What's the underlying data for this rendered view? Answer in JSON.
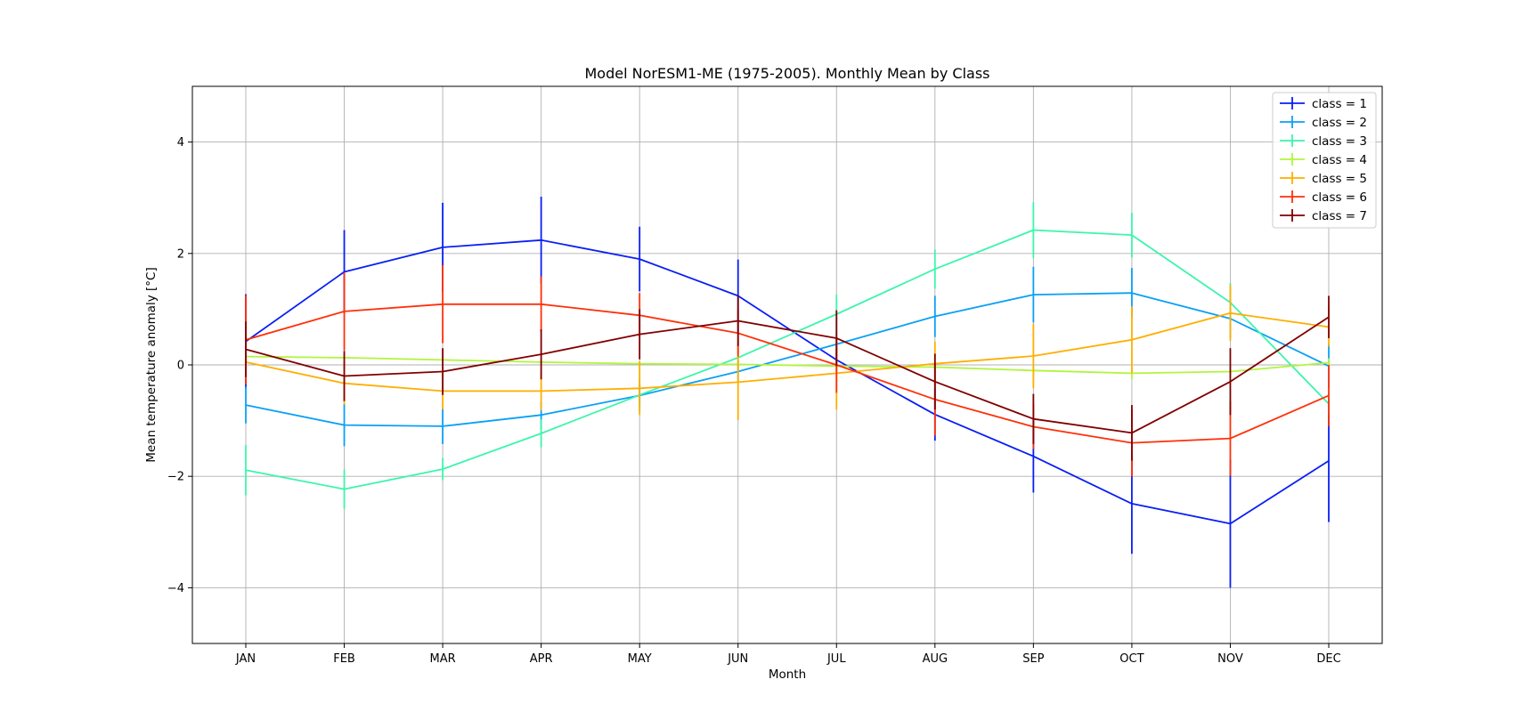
{
  "chart_data": {
    "type": "line",
    "title": "Model NorESM1-ME (1975-2005). Monthly Mean by Class",
    "xlabel": "Month",
    "ylabel": "Mean temperature anomaly [°C]",
    "categories": [
      "JAN",
      "FEB",
      "MAR",
      "APR",
      "MAY",
      "JUN",
      "JUL",
      "AUG",
      "SEP",
      "OCT",
      "NOV",
      "DEC"
    ],
    "ylim": [
      -5,
      5
    ],
    "yticks": [
      -4,
      -2,
      0,
      2,
      4
    ],
    "ytick_labels": [
      "−4",
      "−2",
      "0",
      "2",
      "4"
    ],
    "grid": true,
    "legend_position": "top-right",
    "series": [
      {
        "name": "class = 1",
        "color": "#0a1ef5",
        "values": [
          0.42,
          1.67,
          2.11,
          2.24,
          1.9,
          1.24,
          0.09,
          -0.89,
          -1.64,
          -2.49,
          -2.85,
          -1.72
        ],
        "err": [
          0.85,
          0.75,
          0.8,
          0.78,
          0.58,
          0.65,
          0.2,
          0.47,
          0.65,
          0.9,
          1.15,
          1.1
        ]
      },
      {
        "name": "class = 2",
        "color": "#0aa0f5",
        "values": [
          -0.72,
          -1.08,
          -1.1,
          -0.9,
          -0.55,
          -0.12,
          0.37,
          0.87,
          1.26,
          1.29,
          0.83,
          -0.02
        ],
        "err": [
          0.33,
          0.38,
          0.32,
          0.25,
          0.2,
          0.2,
          0.2,
          0.37,
          0.5,
          0.45,
          0.35,
          0.4
        ]
      },
      {
        "name": "class = 3",
        "color": "#3cf5ac",
        "values": [
          -1.89,
          -2.23,
          -1.87,
          -1.23,
          -0.54,
          0.13,
          0.91,
          1.72,
          2.42,
          2.33,
          1.12,
          -0.7
        ],
        "err": [
          0.45,
          0.35,
          0.2,
          0.25,
          0.3,
          0.3,
          0.35,
          0.35,
          0.5,
          0.4,
          0.35,
          0.2
        ]
      },
      {
        "name": "class = 4",
        "color": "#b0f53c",
        "values": [
          0.15,
          0.13,
          0.09,
          0.05,
          0.02,
          0.01,
          -0.02,
          -0.04,
          -0.1,
          -0.15,
          -0.12,
          0.04
        ],
        "err": [
          0.08,
          0.06,
          0.05,
          0.05,
          0.05,
          0.05,
          0.05,
          0.08,
          0.1,
          0.1,
          0.1,
          0.08
        ]
      },
      {
        "name": "class = 5",
        "color": "#ffae00",
        "values": [
          0.05,
          -0.33,
          -0.47,
          -0.47,
          -0.42,
          -0.31,
          -0.15,
          0.02,
          0.16,
          0.45,
          0.93,
          0.68
        ],
        "err": [
          0.3,
          0.38,
          0.33,
          0.35,
          0.48,
          0.68,
          0.65,
          0.4,
          0.58,
          0.6,
          0.5,
          0.35
        ]
      },
      {
        "name": "class = 6",
        "color": "#ff3008",
        "values": [
          0.45,
          0.96,
          1.09,
          1.09,
          0.89,
          0.57,
          0.0,
          -0.62,
          -1.11,
          -1.4,
          -1.32,
          -0.55
        ],
        "err": [
          0.8,
          0.7,
          0.7,
          0.5,
          0.4,
          0.42,
          0.5,
          0.65,
          0.4,
          0.6,
          0.67,
          0.55
        ]
      },
      {
        "name": "class = 7",
        "color": "#800000",
        "values": [
          0.28,
          -0.2,
          -0.12,
          0.19,
          0.55,
          0.79,
          0.48,
          -0.3,
          -0.97,
          -1.22,
          -0.3,
          0.86
        ],
        "err": [
          0.5,
          0.45,
          0.42,
          0.45,
          0.45,
          0.45,
          0.5,
          0.5,
          0.45,
          0.5,
          0.6,
          0.38
        ]
      }
    ]
  }
}
